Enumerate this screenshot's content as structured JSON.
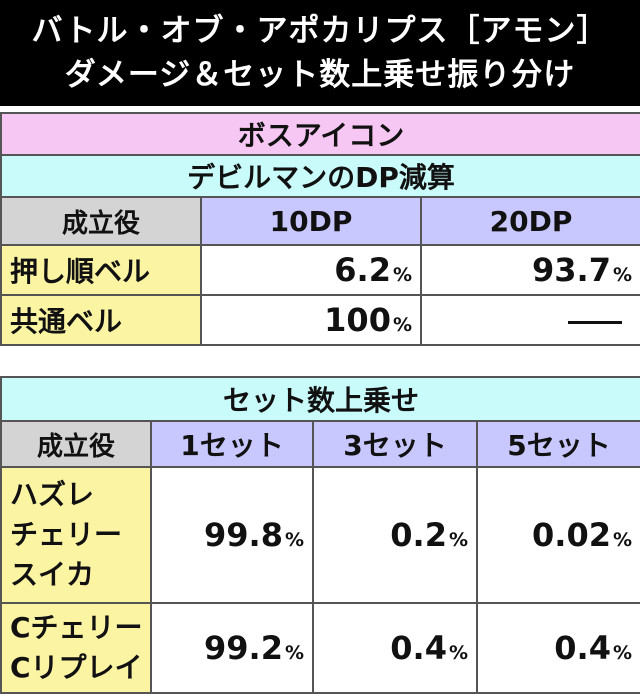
{
  "title": {
    "line1": "バトル・オブ・アポカリプス［アモン］",
    "line2": "ダメージ＆セット数上乗せ振り分け"
  },
  "boss_icon_header": "ボスアイコン",
  "dp_section": {
    "header": "デビルマンのDP減算",
    "columns": [
      "成立役",
      "10DP",
      "20DP"
    ],
    "rows": [
      {
        "role": "押し順ベル",
        "v1": "6.2",
        "v2": "93.7",
        "v2_dash": false
      },
      {
        "role": "共通ベル",
        "v1": "100",
        "v2": "",
        "v2_dash": true
      }
    ],
    "percent_sign": "%"
  },
  "set_section": {
    "header": "セット数上乗せ",
    "columns": [
      "成立役",
      "1セット",
      "3セット",
      "5セット"
    ],
    "rows": [
      {
        "roles": [
          "ハズレ",
          "チェリー",
          "スイカ"
        ],
        "values": [
          "99.8",
          "0.2",
          "0.02"
        ]
      },
      {
        "roles": [
          "Cチェリー",
          "Cリプレイ"
        ],
        "values": [
          "99.2",
          "0.4",
          "0.4"
        ]
      }
    ],
    "percent_sign": "%"
  },
  "colors": {
    "title_bg": "#000000",
    "pink_header": "#f6c7f2",
    "cyan_header": "#c9fbfb",
    "gray_header": "#d4d4d4",
    "purple_header": "#c8c8ff",
    "yellow_role": "#fbf4a3"
  }
}
